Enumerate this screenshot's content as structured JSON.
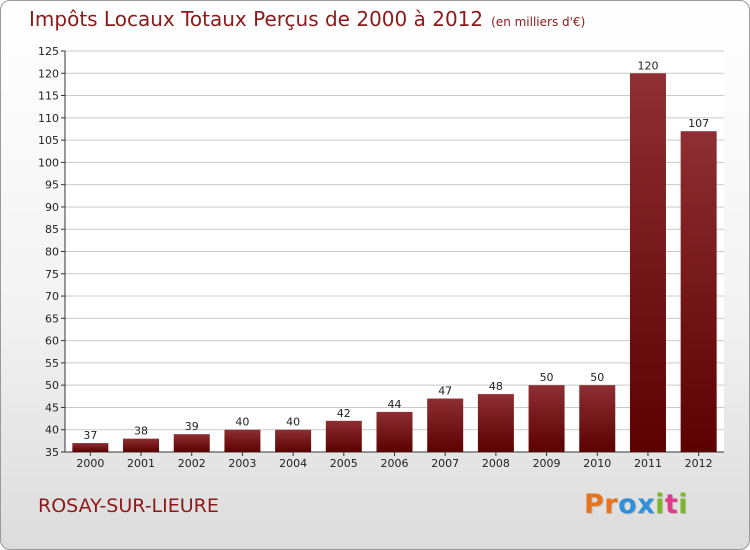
{
  "header": {
    "title": "Impôts Locaux Totaux Perçus de 2000 à 2012",
    "subtitle": "(en milliers d'€)"
  },
  "footer": {
    "commune": "ROSAY-SUR-LIEURE",
    "logo": [
      "P",
      "r",
      "o",
      "x",
      "i",
      "t",
      "i"
    ],
    "logo_colors": [
      "#e8731c",
      "#e8731c",
      "#2f8fd8",
      "#2f8fd8",
      "#7ab829",
      "#e03a8c",
      "#7ab829"
    ]
  },
  "colors": {
    "bar_light": "#8e2f33",
    "bar_dark": "#5c0000",
    "grid": "#c9c9c9",
    "axis": "#333333"
  },
  "chart_data": {
    "type": "bar",
    "title": "Impôts Locaux Totaux Perçus de 2000 à 2012",
    "subtitle": "(en milliers d'€)",
    "categories": [
      "2000",
      "2001",
      "2002",
      "2003",
      "2004",
      "2005",
      "2006",
      "2007",
      "2008",
      "2009",
      "2010",
      "2011",
      "2012"
    ],
    "values": [
      37,
      38,
      39,
      40,
      40,
      42,
      44,
      47,
      48,
      50,
      50,
      120,
      107
    ],
    "data_labels": [
      "37",
      "38",
      "39",
      "40",
      "40",
      "42",
      "44",
      "47",
      "48",
      "50",
      "50",
      "120",
      "107"
    ],
    "ylim": [
      35,
      125
    ],
    "yticks": [
      "35",
      "40",
      "45",
      "50",
      "55",
      "60",
      "65",
      "70",
      "75",
      "80",
      "85",
      "90",
      "95",
      "100",
      "105",
      "110",
      "115",
      "120",
      "125"
    ],
    "grid": true,
    "xlabel": "",
    "ylabel": ""
  }
}
